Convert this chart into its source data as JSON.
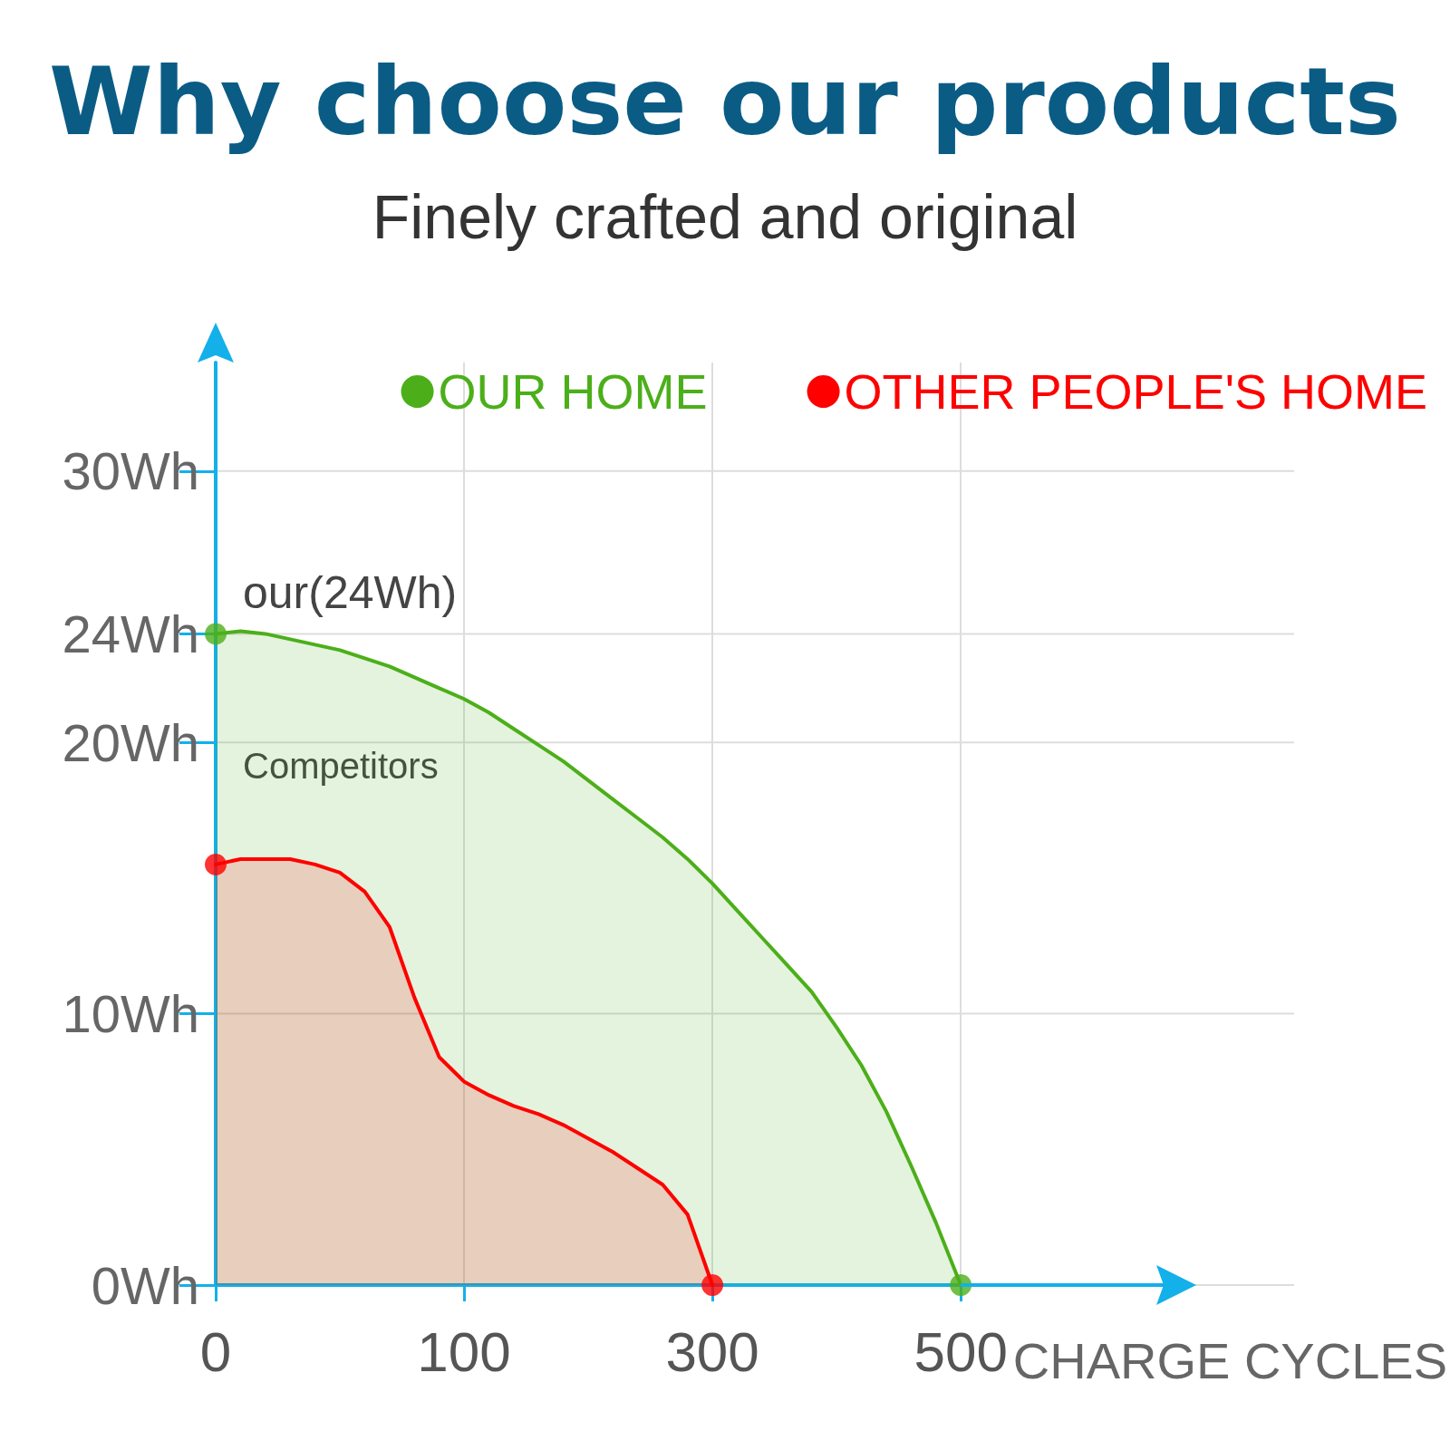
{
  "chart_data": {
    "type": "area",
    "title": "Why choose our products",
    "subtitle": "Finely crafted and original",
    "xlabel": "CHARGE CYCLES",
    "categories": [
      "0",
      null,
      null,
      null,
      null,
      null,
      null,
      null,
      null,
      null,
      "100",
      null,
      null,
      null,
      null,
      null,
      null,
      null,
      null,
      null,
      "300",
      null,
      null,
      null,
      null,
      null,
      null,
      null,
      null,
      null,
      "500"
    ],
    "series": [
      {
        "name": "OUR HOME",
        "color": "#4caf1a",
        "values": [
          24,
          24.1,
          24,
          23.8,
          23.6,
          23.4,
          23.1,
          22.8,
          22.4,
          22,
          21.6,
          21.1,
          20.5,
          19.9,
          19.3,
          18.6,
          17.9,
          17.2,
          16.5,
          15.7,
          14.8,
          13.8,
          12.8,
          11.8,
          10.8,
          9.5,
          8.1,
          6.4,
          4.4,
          2.3,
          0
        ]
      },
      {
        "name": "OTHER PEOPLE'S HOME",
        "color": "#ff0000",
        "values": [
          15.5,
          15.7,
          15.7,
          15.7,
          15.5,
          15.2,
          14.5,
          13.2,
          10.6,
          8.4,
          7.5,
          7,
          6.6,
          6.3,
          5.9,
          5.4,
          4.9,
          4.3,
          3.7,
          2.6,
          0,
          null,
          null,
          null,
          null,
          null,
          null,
          null,
          null,
          null,
          null
        ]
      },
      {
        "type": "scatter",
        "color": "#4caf1a",
        "x": [
          "0",
          "500"
        ],
        "values": [
          24,
          0
        ]
      },
      {
        "type": "scatter",
        "color": "#ff0000",
        "x": [
          "0",
          "300"
        ],
        "values": [
          15.5,
          0
        ]
      }
    ],
    "ylim": [
      0,
      34
    ],
    "yticks": [
      {
        "value": 0,
        "label": "0Wh"
      },
      {
        "value": 10,
        "label": "10Wh"
      },
      {
        "value": 20,
        "label": "20Wh"
      },
      {
        "value": 24,
        "label": "24Wh"
      },
      {
        "value": 30,
        "label": "30Wh"
      }
    ],
    "annotations": [
      {
        "text": "our(24Wh)",
        "x": "0",
        "y": 24
      },
      {
        "text": "Competitors",
        "x": "0",
        "y": 17.8
      }
    ],
    "grid": true,
    "legend": "top right",
    "line_style": "solid"
  }
}
